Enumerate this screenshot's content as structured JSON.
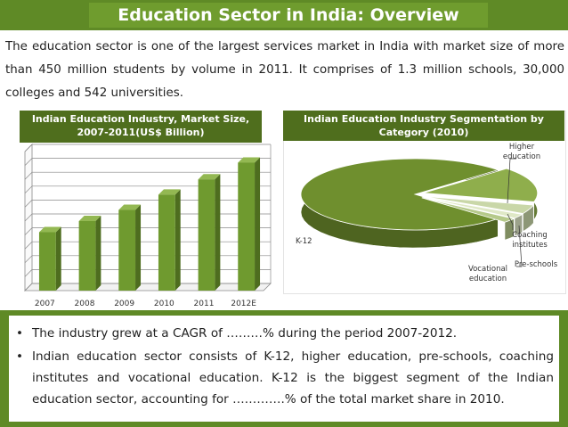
{
  "title": "Education Sector in India: Overview",
  "intro": "The education sector is one of the largest services market in India with market size of more than 450 million students by volume in 2011. It comprises of 1.3 million schools, 30,000 colleges and 542 universities.",
  "chart_data": [
    {
      "type": "bar",
      "title": "Indian Education Industry, Market Size, 2007-2011(US$ Billion)",
      "categories": [
        "2007",
        "2008",
        "2009",
        "2010",
        "2011",
        "2012E"
      ],
      "values": [
        42,
        50,
        58,
        69,
        80,
        92
      ],
      "ylim": [
        0,
        100
      ],
      "grid": true,
      "bar_color": "#6f9a2f"
    },
    {
      "type": "pie",
      "title": "Indian Education Industry Segmentation by Category (2010)",
      "labels": [
        "K-12",
        "Higher education",
        "Coaching institutes",
        "Vocational education",
        "Pre-schools"
      ],
      "values": [
        76,
        16,
        4,
        2,
        2
      ],
      "colors": [
        "#6f8f2e",
        "#8fae4c",
        "#c9d7a8",
        "#dfe8c6",
        "#b5c98a"
      ]
    }
  ],
  "bullets": [
    {
      "marker": "•",
      "text": "The industry grew at a CAGR of ………% during the period 2007-2012."
    },
    {
      "marker": "•",
      "text": "Indian education sector consists of K-12, higher education, pre-schools, coaching institutes and vocational education. K-12 is the biggest segment of the Indian education sector, accounting for ………….% of the total market share in 2010."
    }
  ]
}
